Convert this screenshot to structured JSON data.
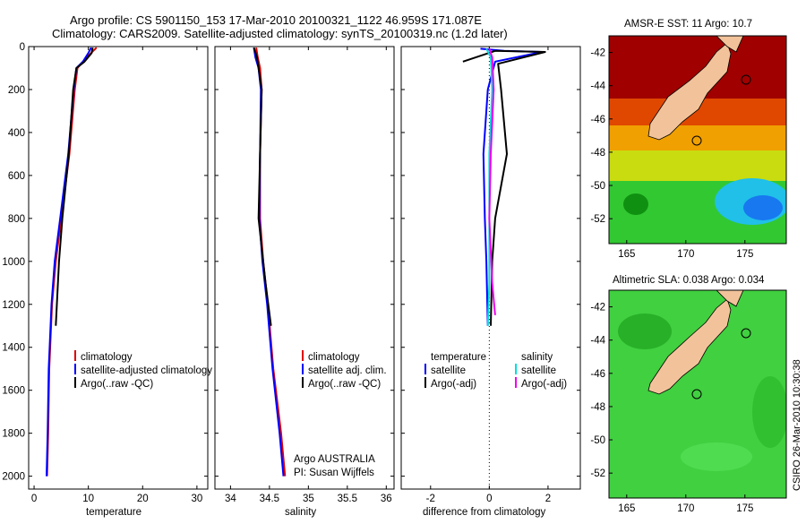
{
  "header": {
    "line1": "Argo profile: CS 5901150_153 17-Mar-2010 20100321_1122 46.959S 171.087E",
    "line2": "Climatology: CARS2009. Satellite-adjusted climatology: synTS_20100319.nc (1.2d later)"
  },
  "colors": {
    "climatology": "#dd0000",
    "satellite": "#0000ff",
    "argo": "#000000",
    "sal_satellite": "#00dddd",
    "sal_argo": "#ee00ee"
  },
  "chart_data": [
    {
      "type": "line",
      "id": "temperature",
      "xlabel": "temperature",
      "xlim": [
        -1,
        32
      ],
      "ylim": [
        2060,
        0
      ],
      "xticks": [
        "0",
        "10",
        "20",
        "30"
      ],
      "yticks": [
        "0",
        "200",
        "400",
        "600",
        "800",
        "1000",
        "1200",
        "1400",
        "1600",
        "1800",
        "2000"
      ],
      "legend": [
        "climatology",
        "satellite-adjusted climatology",
        "Argo(..raw -QC)"
      ],
      "series": [
        {
          "name": "climatology",
          "color": "#dd0000",
          "x": [
            11.5,
            10.5,
            9.0,
            8.0,
            7.5,
            6.5,
            5.0,
            4.0,
            3.3,
            2.8,
            2.6,
            2.4
          ],
          "y": [
            5,
            30,
            70,
            100,
            200,
            500,
            800,
            1000,
            1200,
            1500,
            1800,
            2000
          ]
        },
        {
          "name": "satellite",
          "color": "#0000ff",
          "x": [
            10.5,
            10.0,
            9.0,
            7.8,
            7.3,
            6.3,
            4.8,
            3.8,
            3.2,
            2.7,
            2.5,
            2.3
          ],
          "y": [
            5,
            30,
            70,
            100,
            200,
            500,
            800,
            1000,
            1200,
            1500,
            1800,
            2000
          ]
        },
        {
          "name": "argo",
          "color": "#000000",
          "x": [
            10.8,
            10.6,
            9.3,
            7.8,
            7.2,
            6.4,
            5.2,
            4.6,
            4.0
          ],
          "y": [
            5,
            30,
            70,
            100,
            200,
            500,
            800,
            1000,
            1300
          ]
        }
      ]
    },
    {
      "type": "line",
      "id": "salinity",
      "xlabel": "salinity",
      "xlim": [
        33.8,
        36.1
      ],
      "ylim": [
        2060,
        0
      ],
      "xticks": [
        "34",
        "34.5",
        "35",
        "35.5",
        "36"
      ],
      "legend": [
        "climatology",
        "satellite adj. clim.",
        "Argo(..raw -QC)"
      ],
      "annotations": [
        "Argo AUSTRALIA",
        "PI: Susan Wijffels"
      ],
      "series": [
        {
          "name": "climatology",
          "color": "#dd0000",
          "x": [
            34.33,
            34.35,
            34.38,
            34.4,
            34.38,
            34.38,
            34.42,
            34.48,
            34.55,
            34.65,
            34.7
          ],
          "y": [
            5,
            50,
            100,
            200,
            500,
            800,
            1000,
            1200,
            1500,
            1800,
            2000
          ]
        },
        {
          "name": "satellite",
          "color": "#0000ff",
          "x": [
            34.3,
            34.32,
            34.36,
            34.39,
            34.38,
            34.37,
            34.41,
            34.47,
            34.54,
            34.63,
            34.68
          ],
          "y": [
            5,
            50,
            100,
            200,
            500,
            800,
            1000,
            1200,
            1500,
            1800,
            2000
          ]
        },
        {
          "name": "argo",
          "color": "#000000",
          "x": [
            34.3,
            34.34,
            34.36,
            34.4,
            34.38,
            34.36,
            34.45,
            34.52
          ],
          "y": [
            5,
            50,
            100,
            200,
            500,
            800,
            1100,
            1300
          ]
        }
      ]
    },
    {
      "type": "line",
      "id": "difference",
      "xlabel": "difference from climatology",
      "xlim": [
        -3,
        3.1
      ],
      "ylim": [
        2060,
        0
      ],
      "xticks": [
        "-2",
        "0",
        "2"
      ],
      "legend": {
        "temperature": [
          "temperature",
          "satellite",
          "Argo(-adj)"
        ],
        "salinity": [
          "salinity",
          "satellite",
          "Argo(-adj)"
        ]
      },
      "series": [
        {
          "name": "temperature satellite",
          "color": "#0000ff",
          "x": [
            -0.3,
            0.5,
            1.8,
            0.2,
            -0.05,
            -0.2,
            -0.15,
            -0.1,
            -0.05
          ],
          "y": [
            10,
            20,
            25,
            70,
            200,
            500,
            800,
            1000,
            1300
          ]
        },
        {
          "name": "temperature Argo(-adj)",
          "color": "#000000",
          "x": [
            -0.9,
            0.2,
            1.9,
            0.3,
            0.4,
            0.6,
            0.2,
            0.1,
            0.05
          ],
          "y": [
            70,
            20,
            25,
            80,
            200,
            500,
            800,
            1000,
            1300
          ]
        },
        {
          "name": "salinity satellite",
          "color": "#00dddd",
          "x": [
            -0.1,
            0.05,
            0.1,
            0.0,
            0.0,
            0.0,
            -0.05
          ],
          "y": [
            10,
            50,
            200,
            500,
            800,
            1100,
            1300
          ]
        },
        {
          "name": "salinity Argo(-adj)",
          "color": "#ee00ee",
          "x": [
            0.0,
            0.1,
            0.15,
            0.05,
            0.0,
            0.1,
            0.2
          ],
          "y": [
            10,
            50,
            200,
            500,
            800,
            1100,
            1250
          ]
        }
      ]
    },
    {
      "type": "heatmap",
      "id": "sst-map",
      "title": "AMSR-E SST: 11 Argo: 10.7",
      "xticks": [
        "165",
        "170",
        "175"
      ],
      "yticks": [
        "-42",
        "-44",
        "-46",
        "-48",
        "-50",
        "-52"
      ],
      "xlim": [
        163.5,
        178.5
      ],
      "ylim": [
        -53.5,
        -41
      ]
    },
    {
      "type": "heatmap",
      "id": "sla-map",
      "title": "Altimetric SLA: 0.038 Argo: 0.034",
      "xticks": [
        "165",
        "170",
        "175"
      ],
      "yticks": [
        "-42",
        "-44",
        "-46",
        "-48",
        "-50",
        "-52"
      ],
      "xlim": [
        163.5,
        178.5
      ],
      "ylim": [
        -53.5,
        -41
      ]
    }
  ],
  "footer": {
    "stamp": "CSIRO 26-Mar-2010 10:30:38"
  }
}
